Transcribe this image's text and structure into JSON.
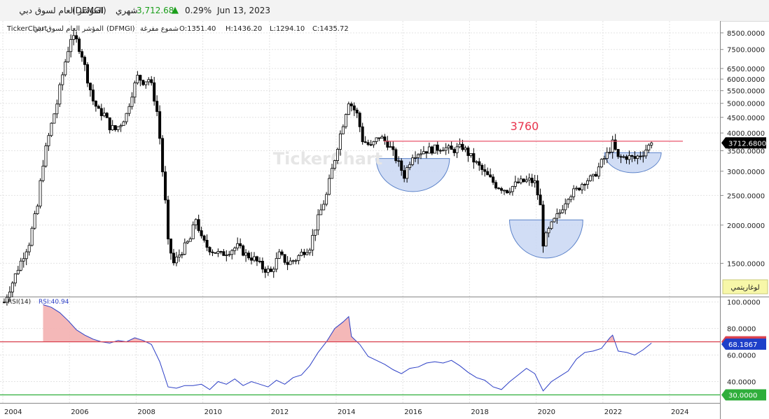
{
  "header": {
    "name": "المؤشر العام لسوق دبي",
    "symbol": "(DFMGI)",
    "interval": "شهري",
    "price": "3,712.68",
    "change_pct": "0.29%",
    "date": "Jun 13, 2023"
  },
  "legend": {
    "source": "TickerChart",
    "name": "المؤشر العام لسوق دبي",
    "symbol": "(DFMGI)",
    "type": "شموع مفرغة",
    "open": "O:1351.40",
    "high": "H:1436.20",
    "low": "L:1294.10",
    "close": "C:1435.72"
  },
  "log_badge": "لوغاريتمي",
  "watermark": "TickerChart",
  "annotation_label": "3760",
  "rsi_legend": {
    "name": "RSI(14)",
    "value": "RSI:40.94"
  },
  "colors": {
    "candle": "#000000",
    "resistance": "#e8556b",
    "bowl_fill": "#c9d7f3",
    "bowl_stroke": "#5b82c9",
    "rsi_line": "#2c3fc6",
    "rsi_upper": "#d9414f",
    "rsi_lower": "#2fae3b",
    "price_tag_bg": "#000000",
    "rsi_tag_bg": "#1e3fc9",
    "up_arrow": "#1a9e1a"
  },
  "chart_data": [
    {
      "type": "candlestick",
      "scale": "log",
      "x_ticks": [
        "2004",
        "2006",
        "2008",
        "2010",
        "2012",
        "2014",
        "2016",
        "2018",
        "2020",
        "2022",
        "2024"
      ],
      "y_ticks": [
        "8500.0000",
        "7500.0000",
        "6500.0000",
        "6000.0000",
        "5500.0000",
        "5000.0000",
        "4500.0000",
        "4000.0000",
        "3500.0000",
        "3000.0000",
        "2500.0000",
        "2000.0000",
        "1500.0000"
      ],
      "ylim": [
        1180,
        9100
      ],
      "last_price": "3712.6800",
      "resistance": 3760,
      "close_path": [
        [
          "2004-01",
          1120
        ],
        [
          "2004-04",
          1300
        ],
        [
          "2004-07",
          1520
        ],
        [
          "2004-10",
          1750
        ],
        [
          "2005-01",
          2300
        ],
        [
          "2005-03",
          3200
        ],
        [
          "2005-05",
          3900
        ],
        [
          "2005-08",
          5000
        ],
        [
          "2005-10",
          6200
        ],
        [
          "2005-12",
          7500
        ],
        [
          "2006-01",
          8200
        ],
        [
          "2006-03",
          8000
        ],
        [
          "2006-05",
          7200
        ],
        [
          "2006-07",
          6000
        ],
        [
          "2006-09",
          5100
        ],
        [
          "2006-11",
          4700
        ],
        [
          "2007-01",
          4600
        ],
        [
          "2007-03",
          4200
        ],
        [
          "2007-05",
          4100
        ],
        [
          "2007-07",
          4300
        ],
        [
          "2007-09",
          4600
        ],
        [
          "2007-11",
          5400
        ],
        [
          "2008-01",
          6100
        ],
        [
          "2008-03",
          5900
        ],
        [
          "2008-05",
          6000
        ],
        [
          "2008-06",
          5700
        ],
        [
          "2008-08",
          4700
        ],
        [
          "2008-10",
          3000
        ],
        [
          "2008-12",
          1750
        ],
        [
          "2009-02",
          1500
        ],
        [
          "2009-05",
          1650
        ],
        [
          "2009-08",
          1800
        ],
        [
          "2009-10",
          2100
        ],
        [
          "2009-12",
          1800
        ],
        [
          "2010-02",
          1700
        ],
        [
          "2010-04",
          1650
        ],
        [
          "2010-07",
          1600
        ],
        [
          "2010-10",
          1650
        ],
        [
          "2011-01",
          1700
        ],
        [
          "2011-04",
          1600
        ],
        [
          "2011-07",
          1550
        ],
        [
          "2011-10",
          1450
        ],
        [
          "2012-01",
          1400
        ],
        [
          "2012-04",
          1600
        ],
        [
          "2012-07",
          1500
        ],
        [
          "2012-10",
          1550
        ],
        [
          "2013-01",
          1650
        ],
        [
          "2013-03",
          1700
        ],
        [
          "2013-06",
          2100
        ],
        [
          "2013-09",
          2500
        ],
        [
          "2013-12",
          3300
        ],
        [
          "2014-03",
          4300
        ],
        [
          "2014-05",
          5100
        ],
        [
          "2014-08",
          4600
        ],
        [
          "2014-10",
          3800
        ],
        [
          "2015-01",
          3600
        ],
        [
          "2015-04",
          3900
        ],
        [
          "2015-07",
          3700
        ],
        [
          "2015-10",
          3300
        ],
        [
          "2016-01",
          2900
        ],
        [
          "2016-04",
          3400
        ],
        [
          "2016-08",
          3500
        ],
        [
          "2016-12",
          3550
        ],
        [
          "2017-03",
          3600
        ],
        [
          "2017-06",
          3500
        ],
        [
          "2017-10",
          3600
        ],
        [
          "2018-02",
          3250
        ],
        [
          "2018-06",
          2950
        ],
        [
          "2018-10",
          2700
        ],
        [
          "2019-02",
          2600
        ],
        [
          "2019-06",
          2750
        ],
        [
          "2019-10",
          2800
        ],
        [
          "2019-12",
          2750
        ],
        [
          "2020-02",
          2300
        ],
        [
          "2020-03",
          1750
        ],
        [
          "2020-06",
          2000
        ],
        [
          "2020-09",
          2200
        ],
        [
          "2020-12",
          2500
        ],
        [
          "2021-03",
          2600
        ],
        [
          "2021-06",
          2800
        ],
        [
          "2021-09",
          2850
        ],
        [
          "2021-12",
          3200
        ],
        [
          "2022-02",
          3400
        ],
        [
          "2022-04",
          3700
        ],
        [
          "2022-06",
          3300
        ],
        [
          "2022-09",
          3350
        ],
        [
          "2022-12",
          3300
        ],
        [
          "2023-03",
          3450
        ],
        [
          "2023-06",
          3712.68
        ]
      ]
    },
    {
      "type": "line",
      "name": "RSI(14)",
      "y_ticks": [
        "100.0000",
        "80.0000",
        "60.0000",
        "40.0000"
      ],
      "ylim": [
        25,
        103
      ],
      "overbought": "70.0000",
      "oversold": "30.0000",
      "last_value": "68.1867",
      "series": [
        [
          "2005-03",
          98
        ],
        [
          "2005-06",
          96
        ],
        [
          "2005-09",
          92
        ],
        [
          "2005-12",
          86
        ],
        [
          "2006-03",
          79
        ],
        [
          "2006-06",
          75
        ],
        [
          "2006-09",
          72
        ],
        [
          "2006-12",
          70
        ],
        [
          "2007-03",
          69
        ],
        [
          "2007-06",
          71
        ],
        [
          "2007-09",
          70
        ],
        [
          "2007-12",
          73
        ],
        [
          "2008-03",
          71
        ],
        [
          "2008-06",
          68
        ],
        [
          "2008-09",
          55
        ],
        [
          "2008-12",
          36
        ],
        [
          "2009-03",
          35
        ],
        [
          "2009-06",
          37
        ],
        [
          "2009-09",
          37
        ],
        [
          "2009-12",
          38
        ],
        [
          "2010-03",
          34
        ],
        [
          "2010-06",
          40
        ],
        [
          "2010-09",
          38
        ],
        [
          "2010-12",
          42
        ],
        [
          "2011-03",
          37
        ],
        [
          "2011-06",
          40
        ],
        [
          "2011-09",
          38
        ],
        [
          "2011-12",
          36
        ],
        [
          "2012-03",
          41
        ],
        [
          "2012-06",
          38
        ],
        [
          "2012-09",
          43
        ],
        [
          "2012-12",
          45
        ],
        [
          "2013-03",
          52
        ],
        [
          "2013-06",
          62
        ],
        [
          "2013-09",
          70
        ],
        [
          "2013-12",
          80
        ],
        [
          "2014-03",
          85
        ],
        [
          "2014-05",
          89
        ],
        [
          "2014-06",
          74
        ],
        [
          "2014-09",
          68
        ],
        [
          "2014-12",
          59
        ],
        [
          "2015-03",
          56
        ],
        [
          "2015-06",
          53
        ],
        [
          "2015-09",
          49
        ],
        [
          "2015-12",
          46
        ],
        [
          "2016-03",
          50
        ],
        [
          "2016-06",
          51
        ],
        [
          "2016-09",
          54
        ],
        [
          "2016-12",
          55
        ],
        [
          "2017-03",
          54
        ],
        [
          "2017-06",
          56
        ],
        [
          "2017-09",
          52
        ],
        [
          "2017-12",
          47
        ],
        [
          "2018-03",
          43
        ],
        [
          "2018-06",
          41
        ],
        [
          "2018-09",
          36
        ],
        [
          "2018-12",
          34
        ],
        [
          "2019-03",
          40
        ],
        [
          "2019-06",
          45
        ],
        [
          "2019-09",
          50
        ],
        [
          "2019-12",
          46
        ],
        [
          "2020-03",
          33
        ],
        [
          "2020-06",
          40
        ],
        [
          "2020-09",
          44
        ],
        [
          "2020-12",
          48
        ],
        [
          "2021-03",
          57
        ],
        [
          "2021-06",
          62
        ],
        [
          "2021-09",
          63
        ],
        [
          "2021-12",
          65
        ],
        [
          "2022-03",
          73
        ],
        [
          "2022-04",
          75
        ],
        [
          "2022-06",
          63
        ],
        [
          "2022-09",
          62
        ],
        [
          "2022-12",
          60
        ],
        [
          "2023-03",
          64
        ],
        [
          "2023-06",
          69
        ]
      ]
    }
  ]
}
